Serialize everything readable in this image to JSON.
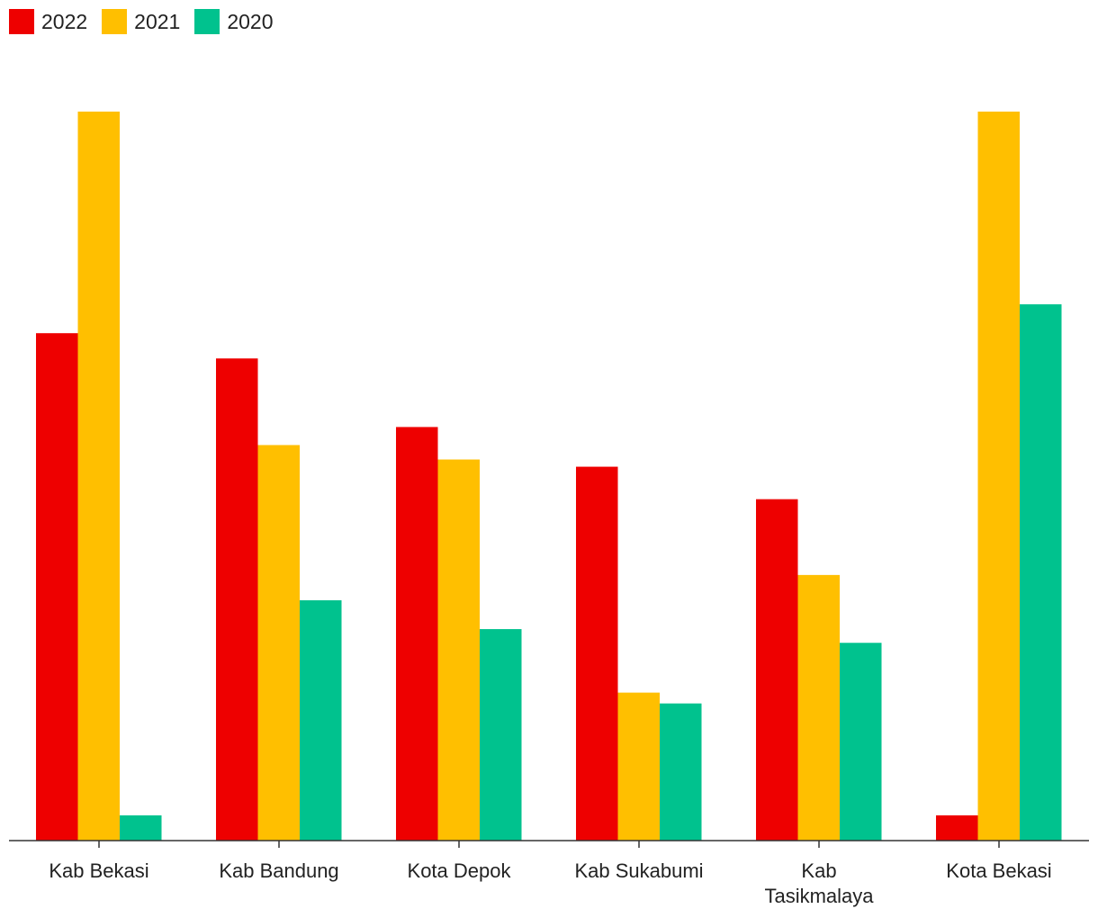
{
  "chart_data": {
    "type": "bar",
    "categories": [
      "Kab Bekasi",
      "Kab Bandung",
      "Kota Depok",
      "Kab Sukabumi",
      "Kab Tasikmalaya",
      "Kota Bekasi"
    ],
    "category_lines": [
      [
        "Kab Bekasi"
      ],
      [
        "Kab Bandung"
      ],
      [
        "Kota Depok"
      ],
      [
        "Kab Sukabumi"
      ],
      [
        "Kab",
        "Tasikmalaya"
      ],
      [
        "Kota Bekasi"
      ]
    ],
    "series": [
      {
        "name": "2022",
        "color": "#ee0000",
        "values": [
          703,
          668,
          573,
          518,
          473,
          35
        ]
      },
      {
        "name": "2021",
        "color": "#ffbf00",
        "values": [
          1010,
          548,
          528,
          205,
          368,
          1010
        ]
      },
      {
        "name": "2020",
        "color": "#00c28e",
        "values": [
          35,
          333,
          293,
          190,
          274,
          743
        ]
      }
    ],
    "ylim": [
      0,
      1010
    ],
    "grid": false,
    "legend_position": "top-left",
    "title": "",
    "xlabel": "",
    "ylabel": ""
  }
}
